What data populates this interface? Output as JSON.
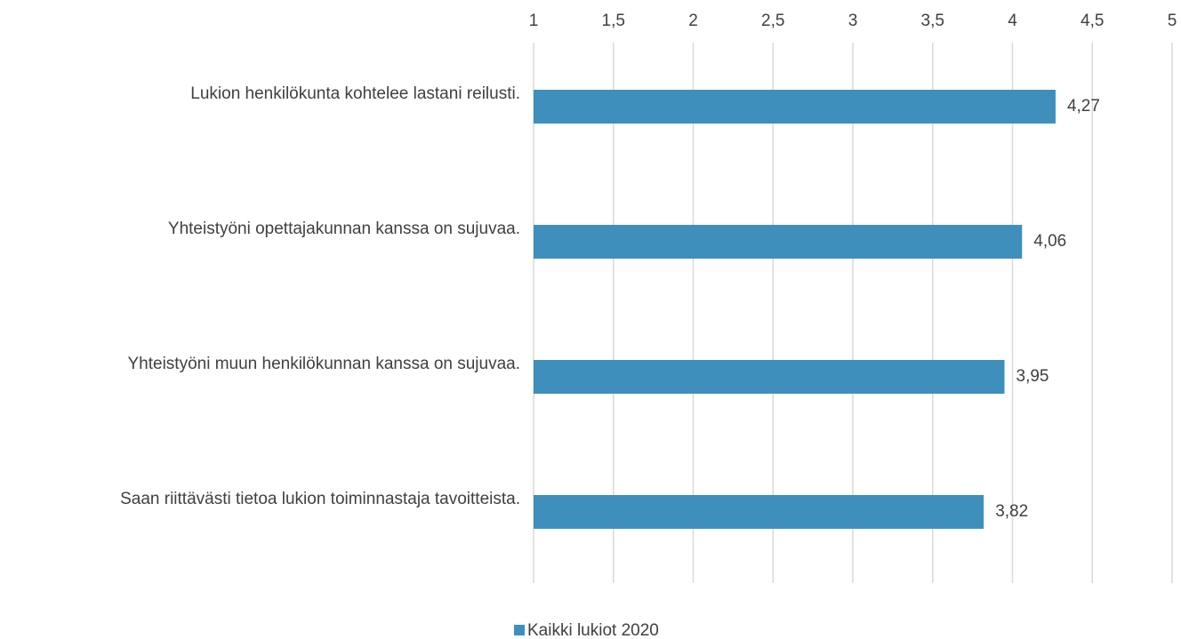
{
  "chart_data": {
    "type": "hbar",
    "categories": [
      "Lukion henkilökunta kohtelee lastani reilusti.",
      "Yhteistyöni opettajakunnan kanssa on sujuvaa.",
      "Yhteistyöni muun henkilökunnan kanssa on sujuvaa.",
      "Saan riittävästi tietoa lukion toiminnastaja tavoitteista."
    ],
    "series": [
      {
        "name": "Kaikki lukiot 2020",
        "color": "#3f8fbd",
        "values": [
          4.27,
          4.06,
          3.95,
          3.82
        ],
        "value_labels": [
          "4,27",
          "4,06",
          "3,95",
          "3,82"
        ]
      }
    ],
    "xlim": [
      1,
      5
    ],
    "xticks": [
      1,
      {
        "value": 1.5,
        "label": "1,5"
      },
      2,
      {
        "value": 2.5,
        "label": "2,5"
      },
      3,
      {
        "value": 3.5,
        "label": "3,5"
      },
      4,
      {
        "value": 4.5,
        "label": "4,5"
      },
      5
    ],
    "grid": true,
    "legend": "bottom"
  }
}
